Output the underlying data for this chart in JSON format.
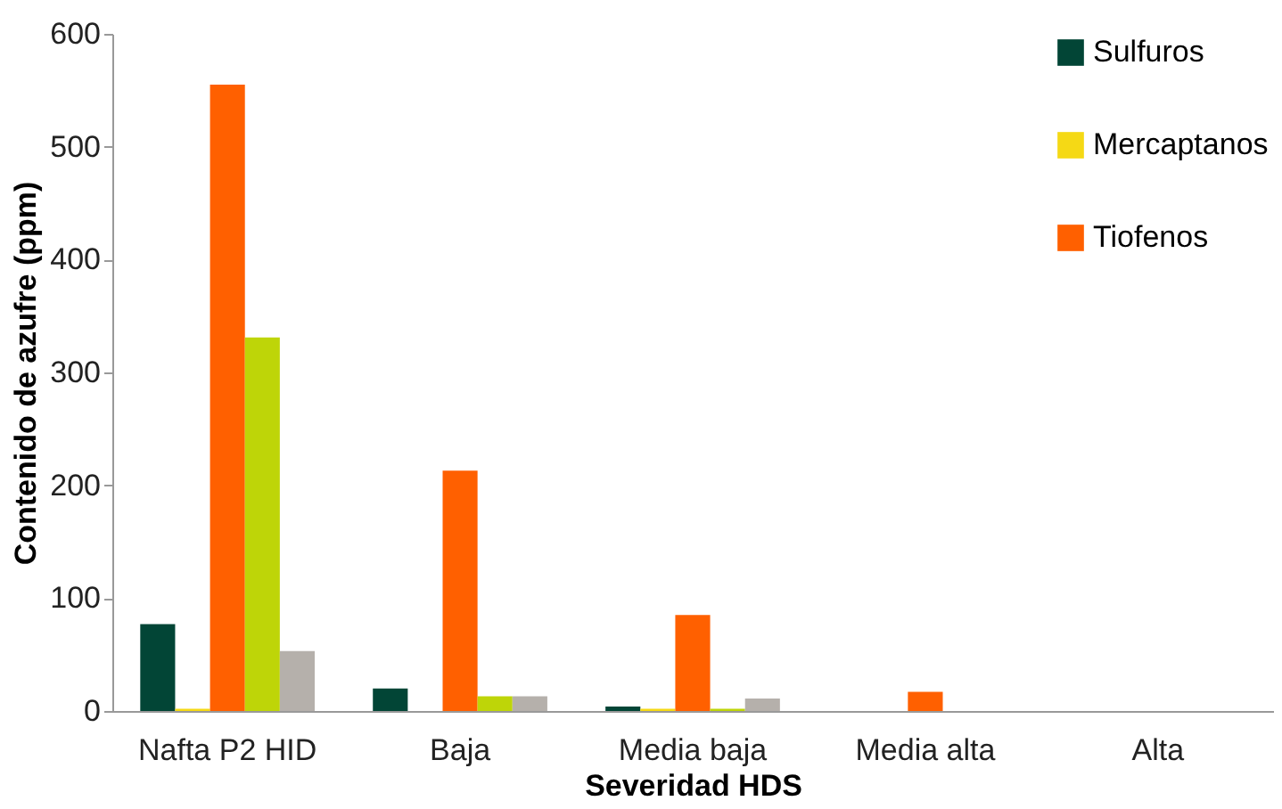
{
  "chart_data": {
    "type": "bar",
    "xlabel": "Severidad HDS",
    "ylabel": "Contenido de azufre (ppm)",
    "categories": [
      "Nafta P2 HID",
      "Baja",
      "Media baja",
      "Media alta",
      "Alta"
    ],
    "series": [
      {
        "name": "Sulfuros",
        "color": "#024536",
        "values": [
          77,
          20,
          4,
          0,
          0
        ]
      },
      {
        "name": "Mercaptanos",
        "color": "#f5d915",
        "values": [
          2,
          0,
          2,
          0,
          0
        ]
      },
      {
        "name": "Tiofenos",
        "color": "#ff6000",
        "values": [
          555,
          213,
          85,
          17,
          0
        ]
      },
      {
        "color": "#bed508",
        "values": [
          331,
          13,
          2,
          0,
          0
        ]
      },
      {
        "color": "#b5b0ab",
        "values": [
          53,
          13,
          11,
          0,
          0
        ]
      }
    ],
    "ylim": [
      0,
      600
    ],
    "yticks": [
      0,
      100,
      200,
      300,
      400,
      500,
      600
    ],
    "grid": false,
    "legend": "top right"
  }
}
